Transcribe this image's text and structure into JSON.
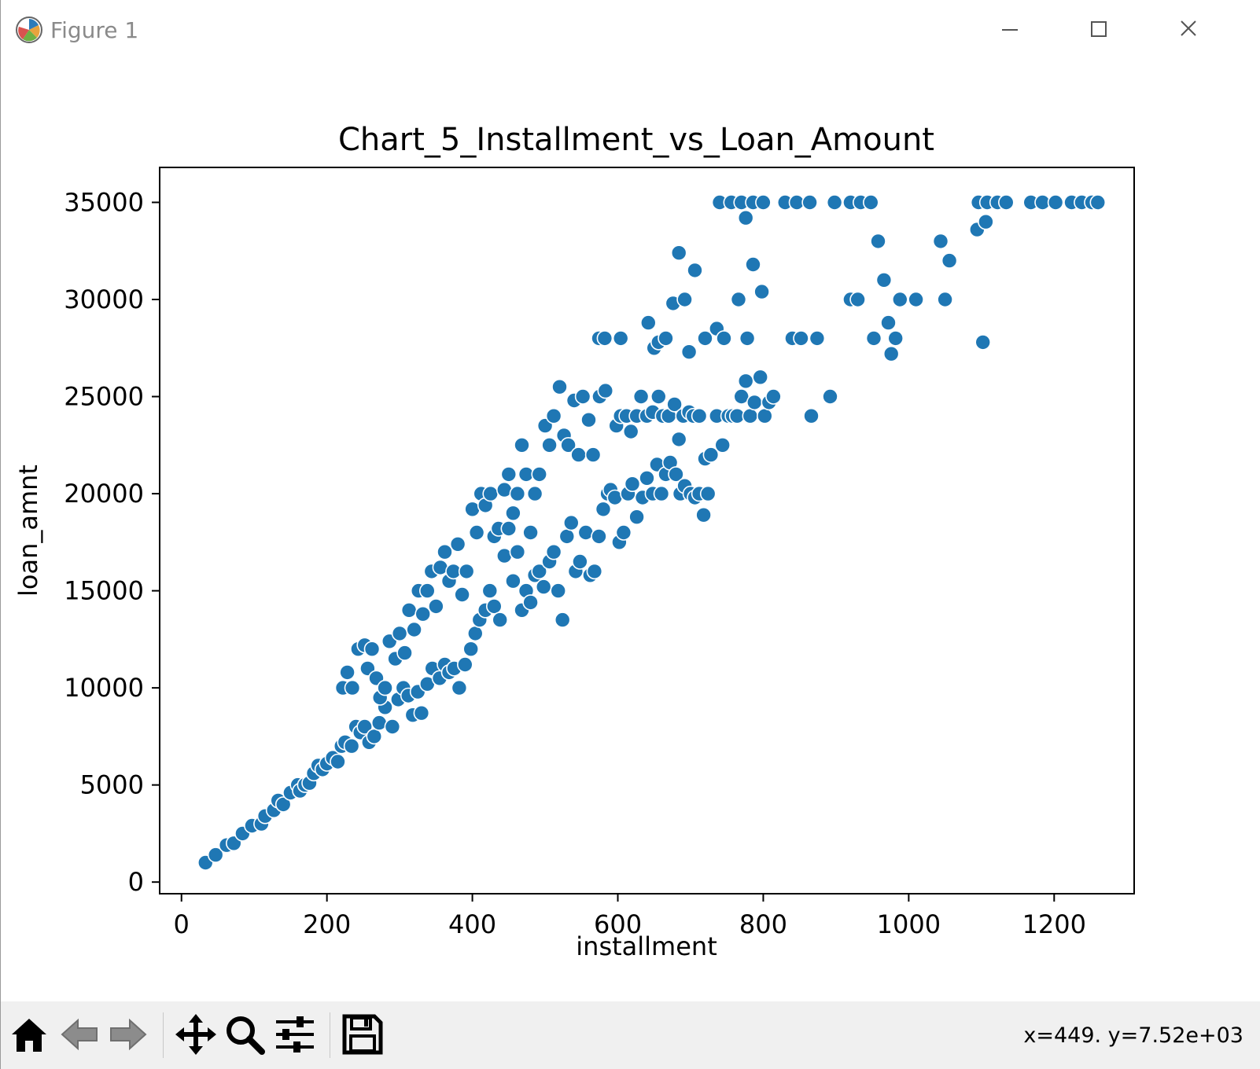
{
  "window": {
    "title": "Figure 1"
  },
  "toolbar": {
    "buttons": [
      "home-icon",
      "back-arrow-icon",
      "forward-arrow-icon",
      "pan-icon",
      "zoom-icon",
      "configure-subplots-icon",
      "save-icon"
    ],
    "coordinates": "x=449. y=7.52e+03"
  },
  "colors": {
    "marker": "#1f77b4",
    "marker_edge": "#ffffff",
    "axes": "#000000",
    "toolbar_bg": "#f0f0f0"
  },
  "chart_data": {
    "type": "scatter",
    "title": "Chart_5_Installment_vs_Loan_Amount",
    "xlabel": "installment",
    "ylabel": "loan_amnt",
    "xlim": [
      -30,
      1310
    ],
    "ylim": [
      -600,
      36800
    ],
    "xticks": [
      0,
      200,
      400,
      600,
      800,
      1000,
      1200
    ],
    "yticks": [
      0,
      5000,
      10000,
      15000,
      20000,
      25000,
      30000,
      35000
    ],
    "grid": false,
    "legend": "none",
    "points": [
      [
        33,
        1000
      ],
      [
        47,
        1400
      ],
      [
        62,
        1900
      ],
      [
        72,
        2000
      ],
      [
        84,
        2500
      ],
      [
        97,
        2900
      ],
      [
        110,
        3000
      ],
      [
        115,
        3400
      ],
      [
        127,
        3700
      ],
      [
        133,
        4200
      ],
      [
        140,
        4000
      ],
      [
        150,
        4600
      ],
      [
        160,
        5000
      ],
      [
        163,
        4700
      ],
      [
        170,
        5000
      ],
      [
        176,
        5100
      ],
      [
        182,
        5600
      ],
      [
        188,
        6000
      ],
      [
        194,
        5800
      ],
      [
        200,
        6100
      ],
      [
        208,
        6400
      ],
      [
        215,
        6200
      ],
      [
        220,
        7000
      ],
      [
        225,
        7200
      ],
      [
        234,
        7000
      ],
      [
        240,
        8000
      ],
      [
        246,
        7700
      ],
      [
        252,
        8000
      ],
      [
        258,
        7200
      ],
      [
        265,
        7500
      ],
      [
        272,
        8200
      ],
      [
        280,
        9000
      ],
      [
        290,
        8000
      ],
      [
        298,
        9400
      ],
      [
        305,
        10000
      ],
      [
        312,
        9600
      ],
      [
        318,
        8600
      ],
      [
        325,
        9800
      ],
      [
        330,
        8700
      ],
      [
        338,
        10200
      ],
      [
        345,
        11000
      ],
      [
        355,
        10500
      ],
      [
        362,
        11200
      ],
      [
        368,
        10800
      ],
      [
        375,
        11000
      ],
      [
        382,
        10000
      ],
      [
        390,
        11200
      ],
      [
        222,
        10000
      ],
      [
        228,
        10800
      ],
      [
        235,
        10000
      ],
      [
        243,
        12000
      ],
      [
        252,
        12200
      ],
      [
        256,
        11000
      ],
      [
        262,
        12000
      ],
      [
        268,
        10500
      ],
      [
        273,
        9500
      ],
      [
        280,
        10000
      ],
      [
        286,
        12400
      ],
      [
        294,
        11500
      ],
      [
        300,
        12800
      ],
      [
        307,
        11800
      ],
      [
        313,
        14000
      ],
      [
        320,
        13000
      ],
      [
        326,
        15000
      ],
      [
        332,
        13800
      ],
      [
        338,
        15000
      ],
      [
        344,
        16000
      ],
      [
        350,
        14200
      ],
      [
        356,
        16200
      ],
      [
        362,
        17000
      ],
      [
        368,
        15500
      ],
      [
        374,
        16000
      ],
      [
        380,
        17400
      ],
      [
        386,
        14800
      ],
      [
        392,
        16000
      ],
      [
        400,
        19200
      ],
      [
        406,
        18000
      ],
      [
        412,
        20000
      ],
      [
        418,
        19400
      ],
      [
        425,
        20000
      ],
      [
        430,
        17800
      ],
      [
        436,
        18200
      ],
      [
        444,
        20200
      ],
      [
        450,
        21000
      ],
      [
        456,
        19000
      ],
      [
        462,
        20000
      ],
      [
        468,
        22500
      ],
      [
        474,
        21000
      ],
      [
        480,
        18000
      ],
      [
        486,
        20000
      ],
      [
        492,
        21000
      ],
      [
        500,
        23500
      ],
      [
        506,
        22500
      ],
      [
        512,
        24000
      ],
      [
        520,
        25500
      ],
      [
        526,
        23000
      ],
      [
        532,
        22500
      ],
      [
        540,
        24800
      ],
      [
        546,
        22000
      ],
      [
        552,
        25000
      ],
      [
        560,
        23800
      ],
      [
        566,
        22000
      ],
      [
        575,
        25000
      ],
      [
        583,
        25300
      ],
      [
        398,
        12000
      ],
      [
        404,
        12800
      ],
      [
        410,
        13500
      ],
      [
        418,
        14000
      ],
      [
        424,
        15000
      ],
      [
        430,
        14200
      ],
      [
        438,
        13500
      ],
      [
        444,
        16800
      ],
      [
        450,
        18200
      ],
      [
        456,
        15500
      ],
      [
        462,
        17000
      ],
      [
        468,
        14000
      ],
      [
        474,
        15000
      ],
      [
        480,
        14400
      ],
      [
        486,
        15800
      ],
      [
        492,
        16000
      ],
      [
        498,
        15200
      ],
      [
        506,
        16500
      ],
      [
        512,
        17000
      ],
      [
        518,
        15000
      ],
      [
        524,
        13500
      ],
      [
        530,
        17800
      ],
      [
        536,
        18500
      ],
      [
        542,
        16000
      ],
      [
        548,
        16500
      ],
      [
        556,
        18000
      ],
      [
        562,
        15800
      ],
      [
        568,
        16000
      ],
      [
        574,
        17800
      ],
      [
        580,
        19200
      ],
      [
        586,
        20000
      ],
      [
        590,
        20200
      ],
      [
        596,
        19800
      ],
      [
        602,
        17500
      ],
      [
        608,
        18000
      ],
      [
        614,
        20000
      ],
      [
        620,
        20500
      ],
      [
        626,
        18800
      ],
      [
        634,
        19800
      ],
      [
        640,
        20800
      ],
      [
        648,
        20000
      ],
      [
        654,
        21500
      ],
      [
        660,
        20000
      ],
      [
        666,
        21000
      ],
      [
        672,
        21600
      ],
      [
        680,
        21000
      ],
      [
        686,
        20000
      ],
      [
        692,
        20400
      ],
      [
        700,
        20000
      ],
      [
        706,
        19800
      ],
      [
        712,
        20000
      ],
      [
        718,
        18900
      ],
      [
        724,
        20000
      ],
      [
        598,
        23500
      ],
      [
        604,
        24000
      ],
      [
        612,
        24000
      ],
      [
        618,
        23200
      ],
      [
        626,
        24000
      ],
      [
        632,
        25000
      ],
      [
        640,
        24000
      ],
      [
        648,
        24200
      ],
      [
        656,
        25000
      ],
      [
        662,
        24000
      ],
      [
        670,
        24000
      ],
      [
        678,
        24600
      ],
      [
        684,
        22800
      ],
      [
        690,
        24000
      ],
      [
        698,
        24200
      ],
      [
        704,
        24000
      ],
      [
        712,
        24000
      ],
      [
        720,
        21800
      ],
      [
        728,
        22000
      ],
      [
        736,
        24000
      ],
      [
        744,
        22500
      ],
      [
        752,
        24000
      ],
      [
        758,
        24000
      ],
      [
        764,
        24000
      ],
      [
        770,
        25000
      ],
      [
        776,
        25800
      ],
      [
        782,
        24000
      ],
      [
        788,
        24700
      ],
      [
        796,
        26000
      ],
      [
        802,
        24000
      ],
      [
        808,
        24700
      ],
      [
        814,
        25000
      ],
      [
        866,
        24000
      ],
      [
        892,
        25000
      ],
      [
        574,
        28000
      ],
      [
        582,
        28000
      ],
      [
        604,
        28000
      ],
      [
        642,
        28800
      ],
      [
        650,
        27500
      ],
      [
        656,
        27800
      ],
      [
        666,
        28000
      ],
      [
        676,
        29800
      ],
      [
        684,
        32400
      ],
      [
        692,
        30000
      ],
      [
        698,
        27300
      ],
      [
        706,
        31500
      ],
      [
        720,
        28000
      ],
      [
        736,
        28500
      ],
      [
        746,
        28000
      ],
      [
        766,
        30000
      ],
      [
        778,
        28000
      ],
      [
        786,
        31800
      ],
      [
        798,
        30400
      ],
      [
        840,
        28000
      ],
      [
        852,
        28000
      ],
      [
        874,
        28000
      ],
      [
        920,
        30000
      ],
      [
        930,
        30000
      ],
      [
        952,
        28000
      ],
      [
        958,
        33000
      ],
      [
        966,
        31000
      ],
      [
        972,
        28800
      ],
      [
        976,
        27200
      ],
      [
        982,
        28000
      ],
      [
        988,
        30000
      ],
      [
        1010,
        30000
      ],
      [
        1044,
        33000
      ],
      [
        1050,
        30000
      ],
      [
        1056,
        32000
      ],
      [
        1094,
        33600
      ],
      [
        1102,
        27800
      ],
      [
        1106,
        34000
      ],
      [
        740,
        35000
      ],
      [
        756,
        35000
      ],
      [
        770,
        35000
      ],
      [
        776,
        34200
      ],
      [
        786,
        35000
      ],
      [
        800,
        35000
      ],
      [
        830,
        35000
      ],
      [
        846,
        35000
      ],
      [
        864,
        35000
      ],
      [
        898,
        35000
      ],
      [
        920,
        35000
      ],
      [
        934,
        35000
      ],
      [
        948,
        35000
      ],
      [
        1096,
        35000
      ],
      [
        1108,
        35000
      ],
      [
        1122,
        35000
      ],
      [
        1134,
        35000
      ],
      [
        1168,
        35000
      ],
      [
        1184,
        35000
      ],
      [
        1202,
        35000
      ],
      [
        1224,
        35000
      ],
      [
        1238,
        35000
      ],
      [
        1252,
        35000
      ],
      [
        1260,
        35000
      ]
    ]
  }
}
